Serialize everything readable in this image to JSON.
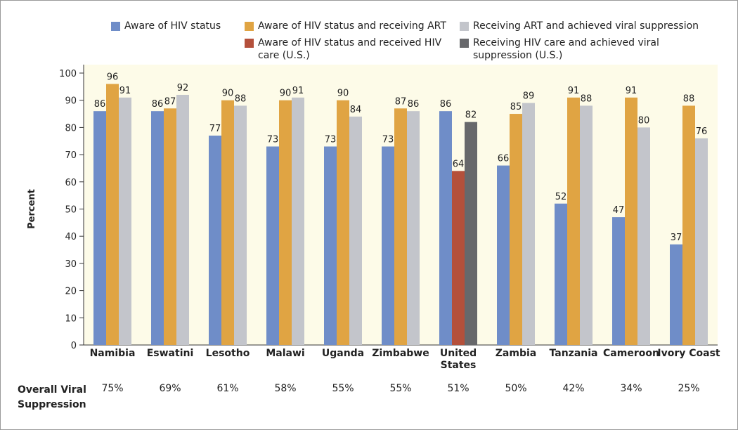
{
  "chart_data": {
    "type": "bar",
    "categories": [
      "Namibia",
      "Eswatini",
      "Lesotho",
      "Malawi",
      "Uganda",
      "Zimbabwe",
      "United States",
      "Zambia",
      "Tanzania",
      "Cameroon",
      "Ivory Coast"
    ],
    "series": [
      {
        "name": "Aware of HIV status",
        "color": "#6f8dc8",
        "values": [
          86,
          86,
          77,
          73,
          73,
          73,
          86,
          66,
          52,
          47,
          37
        ]
      },
      {
        "name": "Aware of HIV status and receiving ART",
        "color": "#e0a443",
        "values": [
          96,
          87,
          90,
          90,
          90,
          87,
          null,
          85,
          91,
          91,
          88
        ]
      },
      {
        "name": "Receiving ART and achieved viral suppression",
        "color": "#c3c5cb",
        "values": [
          91,
          92,
          88,
          91,
          84,
          86,
          null,
          89,
          88,
          80,
          76
        ]
      },
      {
        "name": "Aware of HIV status and received HIV care (U.S.)",
        "color": "#b4503b",
        "values": [
          null,
          null,
          null,
          null,
          null,
          null,
          64,
          null,
          null,
          null,
          null
        ]
      },
      {
        "name": "Receiving HIV care and achieved viral suppression (U.S.)",
        "color": "#67686b",
        "values": [
          null,
          null,
          null,
          null,
          null,
          null,
          82,
          null,
          null,
          null,
          null
        ]
      }
    ],
    "ylabel": "Percent",
    "ylim": [
      0,
      100
    ],
    "yticks": [
      0,
      10,
      20,
      30,
      40,
      50,
      60,
      70,
      80,
      90,
      100
    ],
    "overall_viral_suppression": {
      "label": "Overall Viral Suppression",
      "values": [
        75,
        69,
        61,
        58,
        55,
        55,
        51,
        50,
        42,
        34,
        25
      ],
      "value_labels": [
        "75%",
        "69%",
        "61%",
        "58%",
        "55%",
        "55%",
        "51%",
        "50%",
        "42%",
        "34%",
        "25%"
      ]
    }
  }
}
